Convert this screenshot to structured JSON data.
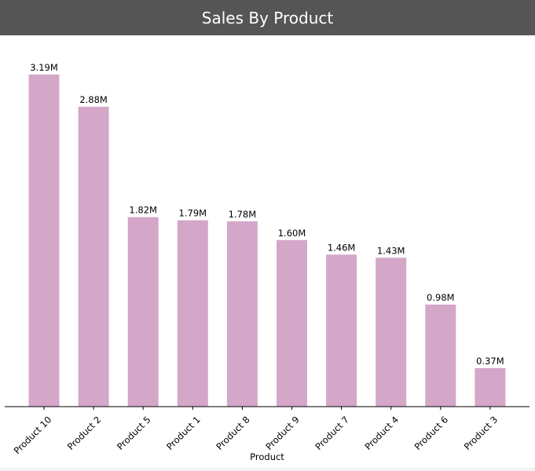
{
  "header": {
    "title": "Sales By Product"
  },
  "colors": {
    "header_bg": "#555555",
    "bar": "#d4a7c9",
    "axis": "#000000"
  },
  "chart_data": {
    "type": "bar",
    "title": "Sales By Product",
    "xlabel": "Product",
    "ylabel": "",
    "categories": [
      "Product 10",
      "Product 2",
      "Product 5",
      "Product 1",
      "Product 8",
      "Product 9",
      "Product 7",
      "Product 4",
      "Product 6",
      "Product 3"
    ],
    "values": [
      3.19,
      2.88,
      1.82,
      1.79,
      1.78,
      1.6,
      1.46,
      1.43,
      0.98,
      0.37
    ],
    "value_labels": [
      "3.19M",
      "2.88M",
      "1.82M",
      "1.79M",
      "1.78M",
      "1.60M",
      "1.46M",
      "1.43M",
      "0.98M",
      "0.37M"
    ],
    "unit": "M",
    "ylim": [
      0,
      3.4
    ],
    "grid": false,
    "legend": "none"
  }
}
